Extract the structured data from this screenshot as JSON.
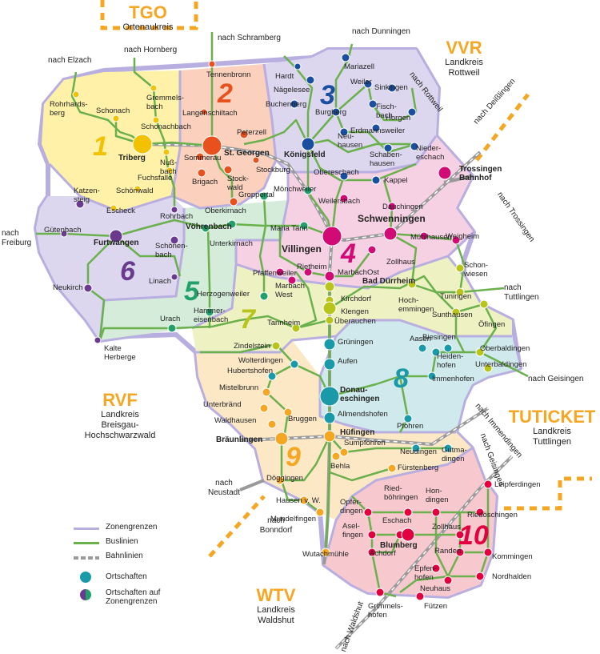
{
  "zones": [
    {
      "num": "1",
      "color": "#f2c200"
    },
    {
      "num": "2",
      "color": "#e8501e"
    },
    {
      "num": "3",
      "color": "#1a4fa0"
    },
    {
      "num": "4",
      "color": "#d10a75"
    },
    {
      "num": "5",
      "color": "#21a06b"
    },
    {
      "num": "6",
      "color": "#6a3a8e"
    },
    {
      "num": "7",
      "color": "#b8c41a"
    },
    {
      "num": "8",
      "color": "#1a9aa8"
    },
    {
      "num": "9",
      "color": "#f5a623"
    },
    {
      "num": "10",
      "color": "#e3003f"
    }
  ],
  "associations": [
    {
      "title": "TGO",
      "sub": "Ortenaukreis"
    },
    {
      "title": "VVR",
      "sub": "Landkreis\nRottweil"
    },
    {
      "title": "RVF",
      "sub": "Landkreis\nBreisgau-\nHochschwarzwald"
    },
    {
      "title": "TUTICKET",
      "sub": "Landkreis\nTuttlingen"
    },
    {
      "title": "WTV",
      "sub": "Landkreis\nWaldshut"
    }
  ],
  "directions": [
    "nach Elzach",
    "nach Hornberg",
    "nach Schramberg",
    "nach Dunningen",
    "nach Rottweil",
    "nach Deißlingen",
    "nach Trossingen",
    "nach Freiburg",
    "nach Tuttlingen",
    "nach Geisingen",
    "nach Immendingen",
    "nach Geisingen",
    "nach Neustadt",
    "nach Bonndorf",
    "nach Waldshut"
  ],
  "places": [
    "Rohrhards-\nberg",
    "Schonach",
    "Gremmels-\nbach",
    "Schonachbach",
    "Triberg",
    "Nuß-\nbach",
    "Fuchsfalle",
    "Schönwald",
    "Katzen-\nsteig",
    "Escheck",
    "Tennenbronn",
    "Langenschiltach",
    "Peterzell",
    "St. Georgen",
    "Sommerau",
    "Brigach",
    "Stock-\nwald",
    "Stockburg",
    "Groppertal",
    "Oberkirnach",
    "Hardt",
    "Mariazell",
    "Nägelesee",
    "Weiler",
    "Sinkingen",
    "Buchenberg",
    "Fisch-\nbach",
    "Horgen",
    "Burgberg",
    "Erdmannsweiler",
    "Königsfeld",
    "Neu-\nhausen",
    "Schaben-\nhausen",
    "Nieder-\neschach",
    "Obereschach",
    "Kappel",
    "Mönchweiler",
    "Weilersbach",
    "Dauchingen",
    "Trossingen\nBahnhof",
    "Gütenbach",
    "Rohrbach",
    "Vöhrenbach",
    "Furtwangen",
    "Schönen-\nbach",
    "Unterkirnach",
    "Maria Tann",
    "Schwenningen",
    "Mühlhausen",
    "Weigheim",
    "Villingen",
    "Neukirch",
    "Linach",
    "Pfaffenweiler",
    "Rietheim",
    "Zollhaus",
    "Schon-\nwiesen",
    "Herzogenweiler",
    "Marbach\nWest",
    "MarbachOst",
    "Bad Dürrheim",
    "Kirchdorf",
    "Hoch-\nemmingen",
    "Tuningen",
    "Hammer-\neisenbach",
    "Klengen",
    "Sunthausen",
    "Urach",
    "Tannheim",
    "Überauchen",
    "Öfingen",
    "Kalte\nHerberge",
    "Zindelstein",
    "Grüningen",
    "Aasen",
    "Biesingen",
    "Oberbaldingen",
    "Wolterdingen",
    "Heiden-\nhofen",
    "Unterbaldingen",
    "Hubertshofen",
    "Aufen",
    "Immenhofen",
    "Mistelbrunn",
    "Donau-\neschingen",
    "Unterbränd",
    "Allmendshofen",
    "Pfohren",
    "Waldhausen",
    "Bruggen",
    "Hüfingen",
    "Bräunlingen",
    "Sumpfohren",
    "Neudingen",
    "Gutma-\ndingen",
    "Behla",
    "Fürstenberg",
    "Döggingen",
    "Leipferdingen",
    "Hausen v. W.",
    "Ried-\nböhringen",
    "Hon-\ndingen",
    "Opfer-\ndingen",
    "Riedöschingen",
    "Mundelfingen",
    "Eschach",
    "Zollhaus",
    "Asel-\nfingen",
    "Blumberg",
    "Wutachmühle",
    "Achdorf",
    "Randen",
    "Kommingen",
    "Epfen-\nhofen",
    "Nordhalden",
    "Neuhaus",
    "Grimmels-\nhofen",
    "Fützen"
  ],
  "legend": {
    "zone_border": "Zonengrenzen",
    "bus_lines": "Buslinien",
    "rail_lines": "Bahnlinien",
    "places": "Ortschaften",
    "places_border": "Ortschaften auf\nZonengrenzen"
  },
  "colors": {
    "zone_border": "#b9aee0",
    "bus": "#6ab04c",
    "rail": "#9a9a9a",
    "dashed_orange": "#f5a623",
    "legend_dot": "#1a9aa8"
  }
}
